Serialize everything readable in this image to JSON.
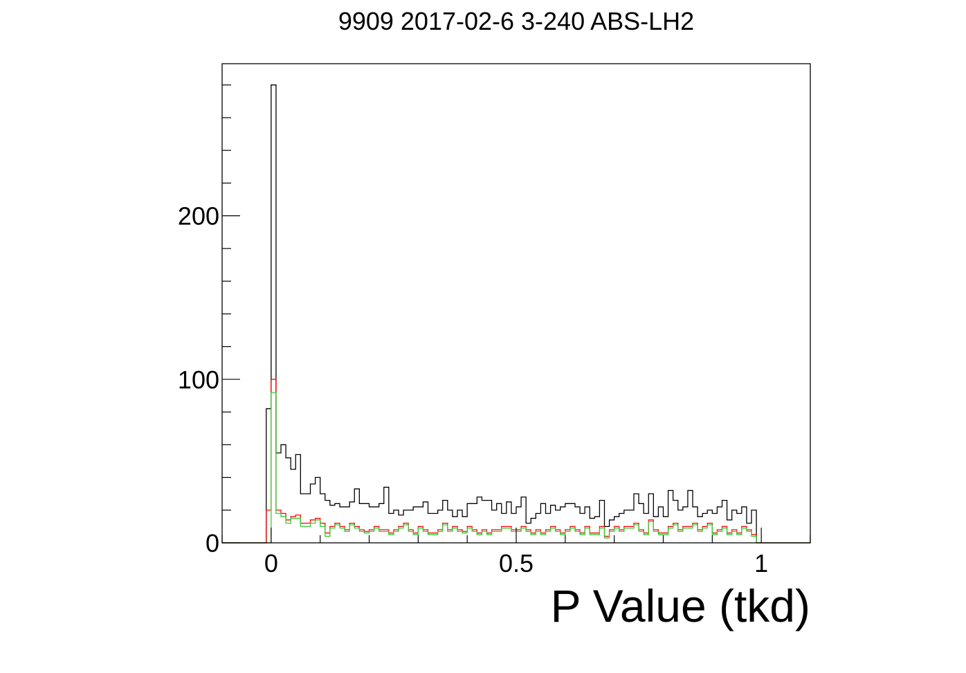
{
  "chart_data": {
    "type": "histogram",
    "title": "9909 2017-02-6 3-240 ABS-LH2",
    "xlabel": "P Value (tkd)",
    "ylabel": "",
    "xlim": [
      -0.1,
      1.1
    ],
    "ylim": [
      0,
      293
    ],
    "x_ticks": [
      0,
      0.5,
      1
    ],
    "x_tick_labels": [
      "0",
      "0.5",
      "1"
    ],
    "y_ticks": [
      0,
      100,
      200
    ],
    "y_tick_labels": [
      "0",
      "100",
      "200"
    ],
    "bin_width": 0.01,
    "bin_start": -0.01,
    "grid": false,
    "legend": "none",
    "series": [
      {
        "color": "#000000",
        "values": [
          82,
          280,
          55,
          60,
          52,
          45,
          54,
          30,
          30,
          36,
          40,
          30,
          26,
          23,
          24,
          22,
          22,
          25,
          33,
          24,
          24,
          22,
          22,
          24,
          34,
          18,
          20,
          17,
          20,
          20,
          22,
          22,
          25,
          18,
          18,
          20,
          26,
          20,
          16,
          20,
          16,
          24,
          24,
          28,
          26,
          26,
          20,
          24,
          18,
          25,
          18,
          22,
          28,
          12,
          15,
          18,
          24,
          18,
          23,
          20,
          22,
          24,
          24,
          22,
          18,
          22,
          15,
          16,
          26,
          10,
          14,
          16,
          18,
          20,
          20,
          30,
          24,
          18,
          30,
          16,
          22,
          16,
          32,
          26,
          20,
          22,
          32,
          22,
          16,
          18,
          20,
          18,
          22,
          26,
          14,
          20,
          18,
          22,
          12,
          20
        ]
      },
      {
        "color": "#ff0000",
        "values": [
          20,
          100,
          20,
          18,
          14,
          16,
          17,
          12,
          12,
          14,
          15,
          12,
          6,
          10,
          12,
          10,
          8,
          12,
          10,
          8,
          7,
          8,
          10,
          8,
          8,
          6,
          8,
          10,
          12,
          8,
          6,
          10,
          8,
          6,
          6,
          8,
          12,
          8,
          10,
          8,
          7,
          10,
          8,
          6,
          8,
          6,
          8,
          8,
          10,
          10,
          8,
          8,
          10,
          8,
          6,
          8,
          6,
          8,
          10,
          8,
          6,
          8,
          10,
          8,
          6,
          10,
          6,
          6,
          10,
          4,
          8,
          10,
          8,
          10,
          10,
          12,
          8,
          6,
          14,
          8,
          6,
          6,
          10,
          12,
          8,
          10,
          10,
          12,
          8,
          10,
          12,
          6,
          8,
          10,
          6,
          8,
          6,
          10,
          8,
          5
        ]
      },
      {
        "color": "#33cc33",
        "values": [
          0,
          92,
          18,
          16,
          12,
          15,
          15,
          10,
          10,
          12,
          14,
          10,
          4,
          9,
          11,
          9,
          7,
          11,
          9,
          7,
          6,
          7,
          9,
          7,
          7,
          5,
          7,
          9,
          11,
          7,
          5,
          9,
          7,
          5,
          5,
          7,
          11,
          7,
          9,
          7,
          6,
          9,
          7,
          5,
          7,
          5,
          7,
          7,
          9,
          9,
          7,
          7,
          9,
          7,
          5,
          7,
          5,
          7,
          9,
          7,
          5,
          7,
          9,
          7,
          5,
          9,
          5,
          5,
          9,
          3,
          7,
          9,
          7,
          9,
          9,
          11,
          7,
          5,
          13,
          7,
          5,
          5,
          9,
          11,
          7,
          9,
          9,
          11,
          7,
          9,
          11,
          5,
          7,
          9,
          5,
          7,
          5,
          9,
          7,
          4
        ]
      }
    ]
  }
}
